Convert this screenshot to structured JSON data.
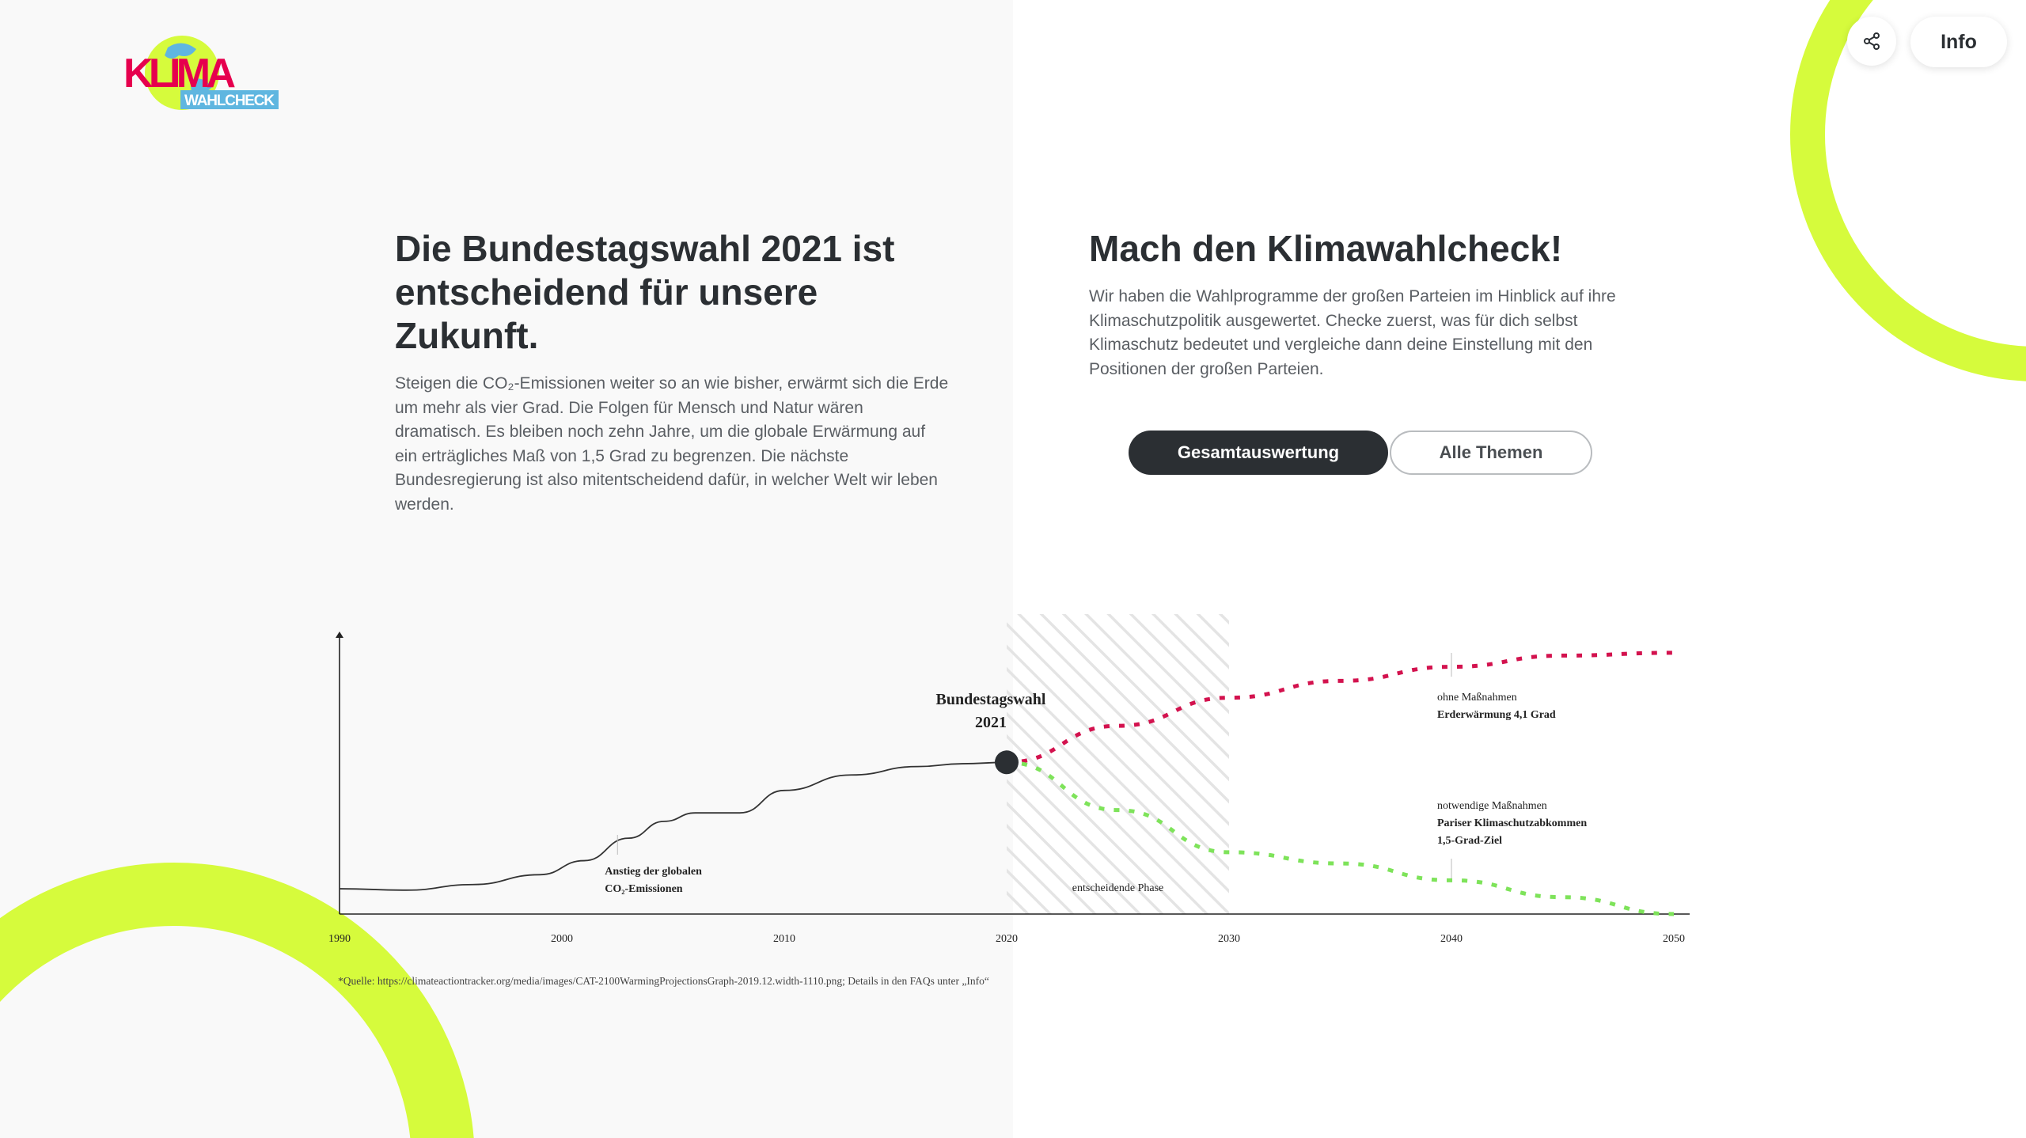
{
  "logo": {
    "top": "KLIMA",
    "bottom": "WAHLCHECK"
  },
  "header": {
    "share_label": "Teilen",
    "info_label": "Info"
  },
  "intro": {
    "title": "Die Bundestagswahl 2021 ist entscheidend für unsere Zukunft.",
    "body": "Steigen die CO₂-Emissionen weiter so an wie bisher, erwärmt sich die Erde um mehr als vier Grad. Die Folgen für Mensch und Natur wären dramatisch. Es bleiben noch zehn Jahre, um die globale Erwärmung auf ein erträgliches Maß von 1,5 Grad zu begrenzen. Die nächste Bundesregierung ist also mitentscheidend dafür, in welcher Welt wir leben werden."
  },
  "cta": {
    "title": "Mach den Klimawahlcheck!",
    "body": "Wir haben die Wahlprogramme der großen Parteien im Hinblick auf ihre Klimaschutzpolitik ausgewertet. Checke zuerst, was für dich selbst Klimaschutz bedeutet und vergleiche dann deine Einstellung mit den Positionen der großen Parteien.",
    "primary_button": "Gesamtauswertung",
    "secondary_button": "Alle Themen"
  },
  "colors": {
    "dark": "#2b2f33",
    "accent_yellow": "#d6fb3c",
    "no_action_red": "#d3124e",
    "necessary_green": "#7ee35a",
    "logo_magenta": "#e6004e",
    "logo_blue": "#5fb6e0"
  },
  "chart_data": {
    "type": "line",
    "x_ticks": [
      "1990",
      "2000",
      "2010",
      "2020",
      "2030",
      "2040",
      "2050"
    ],
    "xlim": [
      1990,
      2050
    ],
    "ylim": [
      0,
      100
    ],
    "series": [
      {
        "id": "historical",
        "style": "solid",
        "x": [
          1990,
          1993,
          1996,
          1999,
          2001,
          2003,
          2004.6,
          2006,
          2008,
          2010,
          2013,
          2016,
          2018,
          2020
        ],
        "values": [
          9,
          8.5,
          10.5,
          14,
          19,
          27,
          33,
          36,
          36,
          44,
          49.5,
          52.5,
          53.5,
          54
        ]
      },
      {
        "id": "no_action",
        "name": "ohne Maßnahmen",
        "style": "dashed",
        "x": [
          2020,
          2025,
          2030,
          2035,
          2040,
          2045,
          2050
        ],
        "values": [
          54,
          67,
          77,
          83,
          88,
          92,
          93
        ]
      },
      {
        "id": "necessary",
        "name": "notwendige Maßnahmen",
        "style": "dashed",
        "x": [
          2020,
          2025,
          2030,
          2035,
          2040,
          2045,
          2050
        ],
        "values": [
          54,
          37,
          22,
          18,
          12,
          6,
          0
        ]
      }
    ],
    "highlight": {
      "from": 2020,
      "to": 2030,
      "label": "entscheidende Phase"
    },
    "event": {
      "x": 2020,
      "value": 54,
      "label_line1": "Bundestagswahl",
      "label_line2": "2021"
    },
    "annotations": {
      "rise": {
        "x": 2002.5,
        "line1": "Anstieg der globalen",
        "line2": "CO₂-Emissionen"
      },
      "no_action": {
        "x": 2040,
        "line1": "ohne Maßnahmen",
        "line2": "Erderwärmung 4,1 Grad"
      },
      "necessary": {
        "x": 2040,
        "line1": "notwendige Maßnahmen",
        "line2": "Pariser Klimaschutzabkommen",
        "line3": "1,5-Grad-Ziel"
      }
    },
    "source": "*Quelle: https://climateactiontracker.org/media/images/CAT-2100WarmingProjectionsGraph-2019.12.width-1110.png; Details in den FAQs unter „Info“"
  }
}
